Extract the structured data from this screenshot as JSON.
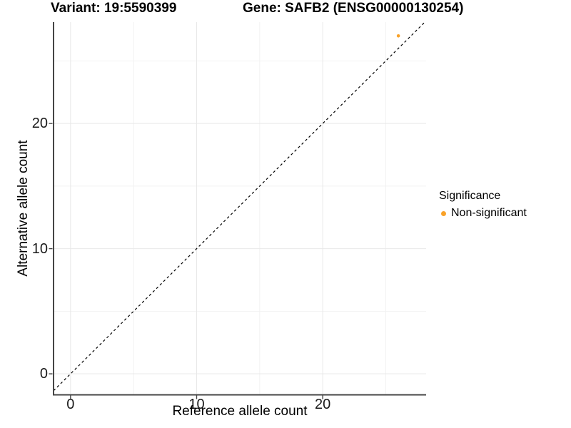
{
  "title_left": "Variant: 19:5590399",
  "title_right": "Gene: SAFB2 (ENSG00000130254)",
  "chart_data": {
    "type": "scatter",
    "xlabel": "Reference allele count",
    "ylabel": "Alternative allele count",
    "xlim": [
      -1.35,
      28.2
    ],
    "ylim": [
      -1.65,
      28.1
    ],
    "xticks": [
      0,
      10,
      20
    ],
    "yticks": [
      0,
      10,
      20
    ],
    "xminor_ticks": [
      5,
      15,
      25
    ],
    "yminor_ticks": [
      5,
      15,
      25
    ],
    "grid": "major and minor gridlines on white background",
    "identity_line": {
      "equation": "y = x",
      "style": "dashed",
      "color": "#000000"
    },
    "series": [
      {
        "name": "Non-significant",
        "color": "#F9A229",
        "points": [
          {
            "x": 26,
            "y": 27
          }
        ]
      }
    ],
    "legend": {
      "title": "Significance",
      "position": "right",
      "items": [
        {
          "label": "Non-significant",
          "color": "#F9A229"
        }
      ]
    }
  },
  "colors": {
    "background": "#FFFFFF",
    "grid_major": "#E8E8E8",
    "grid_minor": "#F2F2F2",
    "axis_line": "#454545",
    "tick_text": "#1A1A1A",
    "point_orange": "#F9A229"
  }
}
